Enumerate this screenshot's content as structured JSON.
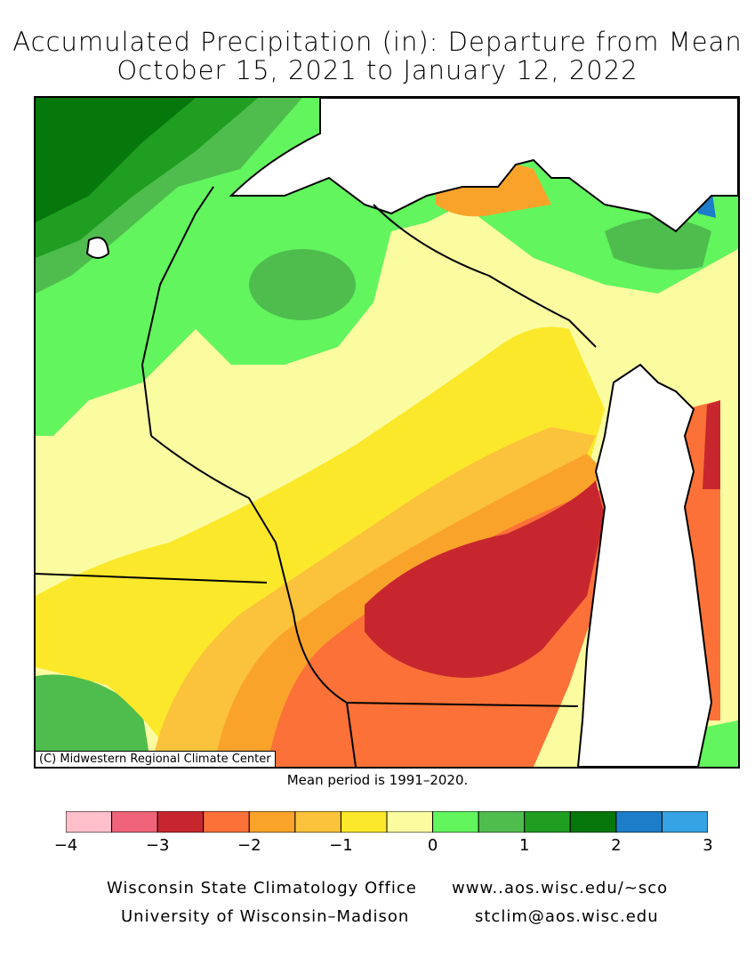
{
  "title": "Accumulated Precipitation (in): Departure from Mean",
  "subtitle": "October 15, 2021 to January 12, 2022",
  "credit": "(C) Midwestern Regional Climate Center",
  "mean_period": "Mean period is 1991–2020.",
  "legend": {
    "colors": [
      "#ffc0cb",
      "#f0647a",
      "#c8262e",
      "#fb7138",
      "#faa32b",
      "#fbc23c",
      "#fbe82a",
      "#fbfba0",
      "#62f55e",
      "#4fbd4d",
      "#1f9e22",
      "#06770a",
      "#1d7dc8",
      "#35a3e4"
    ],
    "ticks": [
      "−4",
      "−3",
      "−2",
      "−1",
      "0",
      "1",
      "2",
      "3"
    ]
  },
  "footer": {
    "org1": "Wisconsin State Climatology Office",
    "org2": "University of Wisconsin–Madison",
    "url": "www..aos.wisc.edu/~sco",
    "email": "stclim@aos.wisc.edu"
  }
}
